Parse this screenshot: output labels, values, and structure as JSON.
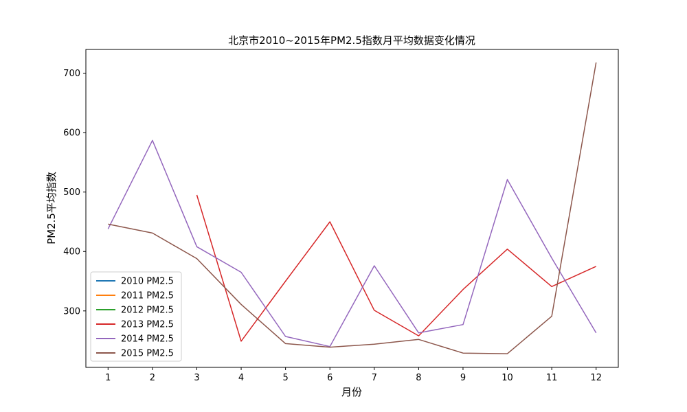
{
  "chart_data": {
    "type": "line",
    "title": "北京市2010~2015年PM2.5指数月平均数据变化情况",
    "xlabel": "月份",
    "ylabel": "PM2.5平均指数",
    "x": [
      1,
      2,
      3,
      4,
      5,
      6,
      7,
      8,
      9,
      10,
      11,
      12
    ],
    "xlim": [
      0.5,
      12.5
    ],
    "ylim": [
      205,
      740
    ],
    "yticks": [
      300,
      400,
      500,
      600,
      700
    ],
    "grid": false,
    "legend_position": "lower-left",
    "series": [
      {
        "name": "2010 PM2.5",
        "color": "#1f77b4",
        "values": [
          null,
          null,
          null,
          null,
          null,
          null,
          null,
          null,
          null,
          null,
          null,
          null
        ]
      },
      {
        "name": "2011 PM2.5",
        "color": "#ff7f0e",
        "values": [
          null,
          null,
          null,
          null,
          null,
          null,
          null,
          null,
          null,
          null,
          null,
          null
        ]
      },
      {
        "name": "2012 PM2.5",
        "color": "#2ca02c",
        "values": [
          null,
          null,
          null,
          null,
          null,
          null,
          null,
          null,
          null,
          null,
          null,
          null
        ]
      },
      {
        "name": "2013 PM2.5",
        "color": "#d62728",
        "values": [
          null,
          null,
          495,
          249,
          350,
          450,
          301,
          258,
          336,
          404,
          341,
          375
        ]
      },
      {
        "name": "2014 PM2.5",
        "color": "#9467bd",
        "values": [
          438,
          587,
          408,
          365,
          257,
          240,
          376,
          263,
          277,
          521,
          389,
          263
        ]
      },
      {
        "name": "2015 PM2.5",
        "color": "#8c564b",
        "values": [
          446,
          431,
          388,
          311,
          245,
          239,
          244,
          252,
          229,
          228,
          291,
          718
        ]
      }
    ]
  }
}
